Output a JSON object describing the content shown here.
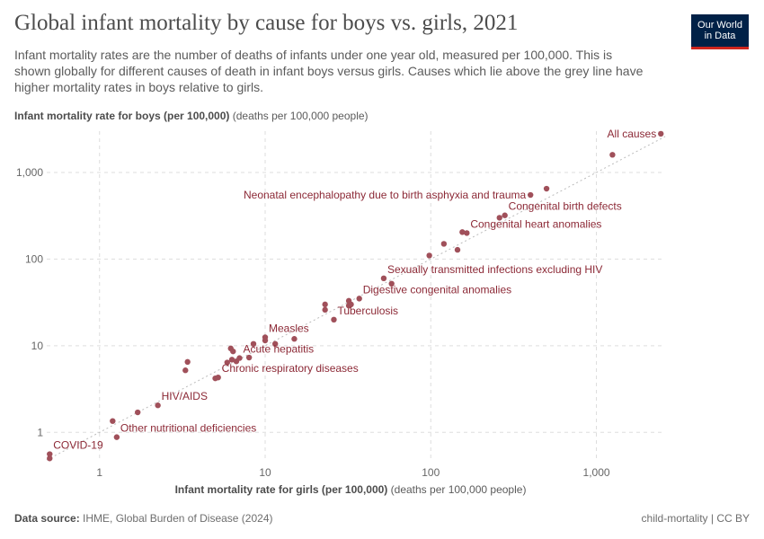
{
  "header": {
    "title": "Global infant mortality by cause for boys vs. girls, 2021",
    "subtitle": "Infant mortality rates are the number of deaths of infants under one year old, measured per 100,000. This is shown globally for different causes of death in infant boys versus girls. Causes which lie above the grey line have higher mortality rates in boys relative to girls.",
    "logo_line1": "Our World",
    "logo_line2": "in Data"
  },
  "axes": {
    "y_label_bold": "Infant mortality rate for boys (per 100,000)",
    "y_label_unit": "(deaths per 100,000 people)",
    "x_label_bold": "Infant mortality rate for girls (per 100,000)",
    "x_label_unit": "(deaths per 100,000 people)"
  },
  "footer": {
    "source_bold": "Data source:",
    "source_text": "IHME, Global Burden of Disease (2024)",
    "credit": "child-mortality | CC BY"
  },
  "colors": {
    "point": "#a0505a",
    "label": "#8c2936",
    "grid": "#dddddd",
    "reference_line": "#bbbbbb"
  },
  "chart_data": {
    "type": "scatter",
    "x_scale": "log",
    "y_scale": "log",
    "xlim": [
      0.48,
      2600
    ],
    "ylim": [
      0.48,
      3000
    ],
    "x_ticks": [
      1,
      10,
      100,
      1000
    ],
    "x_tick_labels": [
      "1",
      "10",
      "100",
      "1,000"
    ],
    "y_ticks": [
      1,
      10,
      100,
      1000
    ],
    "y_tick_labels": [
      "1",
      "10",
      "100",
      "1,000"
    ],
    "grid": true,
    "reference_line": "y = x",
    "points": [
      {
        "x": 2450,
        "y": 2800,
        "label": "All causes"
      },
      {
        "x": 1250,
        "y": 1600
      },
      {
        "x": 500,
        "y": 650
      },
      {
        "x": 400,
        "y": 550,
        "label": "Neonatal encephalopathy due to birth asphyxia and trauma"
      },
      {
        "x": 280,
        "y": 320,
        "label": "Congenital birth defects"
      },
      {
        "x": 260,
        "y": 300
      },
      {
        "x": 165,
        "y": 200,
        "label": "Congenital heart anomalies"
      },
      {
        "x": 155,
        "y": 205
      },
      {
        "x": 120,
        "y": 150
      },
      {
        "x": 145,
        "y": 128
      },
      {
        "x": 98,
        "y": 110
      },
      {
        "x": 52,
        "y": 60,
        "label": "Sexually transmitted infections excluding HIV"
      },
      {
        "x": 58,
        "y": 52
      },
      {
        "x": 37,
        "y": 35,
        "label": "Digestive congenital anomalies"
      },
      {
        "x": 32,
        "y": 33
      },
      {
        "x": 33,
        "y": 30
      },
      {
        "x": 32,
        "y": 29
      },
      {
        "x": 23,
        "y": 30
      },
      {
        "x": 23,
        "y": 26
      },
      {
        "x": 26,
        "y": 20,
        "label": "Tuberculosis"
      },
      {
        "x": 15,
        "y": 12
      },
      {
        "x": 10,
        "y": 12.5,
        "label": "Measles"
      },
      {
        "x": 10,
        "y": 11.5
      },
      {
        "x": 11.5,
        "y": 10.5
      },
      {
        "x": 8.5,
        "y": 10.5
      },
      {
        "x": 6.2,
        "y": 9.3
      },
      {
        "x": 6.4,
        "y": 8.6
      },
      {
        "x": 7,
        "y": 7.2,
        "label": "Acute hepatitis"
      },
      {
        "x": 8,
        "y": 7.3
      },
      {
        "x": 6.3,
        "y": 6.9
      },
      {
        "x": 6.7,
        "y": 6.6
      },
      {
        "x": 5.9,
        "y": 6.4
      },
      {
        "x": 5.2,
        "y": 4.3,
        "label": "Chronic respiratory diseases"
      },
      {
        "x": 5,
        "y": 4.2
      },
      {
        "x": 3.4,
        "y": 6.5
      },
      {
        "x": 3.3,
        "y": 5.2
      },
      {
        "x": 2.25,
        "y": 2.05,
        "label": "HIV/AIDS"
      },
      {
        "x": 1.7,
        "y": 1.7
      },
      {
        "x": 1.2,
        "y": 1.35
      },
      {
        "x": 1.27,
        "y": 0.88,
        "label": "Other nutritional deficiencies"
      },
      {
        "x": 0.5,
        "y": 0.56,
        "label": "COVID-19"
      },
      {
        "x": 0.5,
        "y": 0.5
      }
    ]
  }
}
